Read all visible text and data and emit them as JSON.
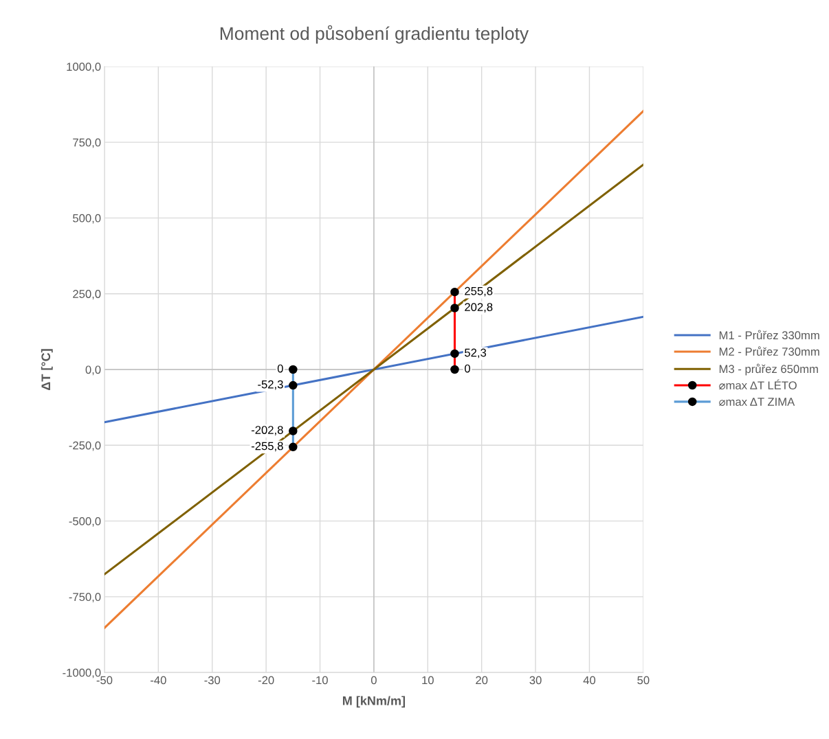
{
  "chart_data": {
    "type": "line",
    "title": "Moment od působení gradientu teploty",
    "xlabel": "M [kNm/m]",
    "ylabel": "ΔT [°C]",
    "xlim": [
      -50,
      50
    ],
    "xticks": [
      -50,
      -40,
      -30,
      -20,
      -10,
      0,
      10,
      20,
      30,
      40,
      50
    ],
    "ylim": [
      -1000,
      1000
    ],
    "yticks": [
      {
        "value": -1000,
        "label": "-1000,0"
      },
      {
        "value": -750,
        "label": "-750,0"
      },
      {
        "value": -500,
        "label": "-500,0"
      },
      {
        "value": -250,
        "label": "-250,0"
      },
      {
        "value": 0,
        "label": "0,0"
      },
      {
        "value": 250,
        "label": "250,0"
      },
      {
        "value": 500,
        "label": "500,0"
      },
      {
        "value": 750,
        "label": "750,0"
      },
      {
        "value": 1000,
        "label": "1000,0"
      }
    ],
    "grid": true,
    "legend": "right",
    "marker": "none",
    "series": [
      {
        "name": "M1 - Průřez 330mm",
        "color": "#4472c4",
        "x": [
          -50,
          50
        ],
        "values": [
          -174,
          174
        ]
      },
      {
        "name": "M2 - Průřez 730mm",
        "color": "#ed7d31",
        "x": [
          -50,
          50
        ],
        "values": [
          -853,
          853
        ]
      },
      {
        "name": "M3 - průřez 650mm",
        "color": "#7f6000",
        "x": [
          -50,
          50
        ],
        "values": [
          -676,
          676
        ]
      },
      {
        "name": "⌀max ΔT LÉTO",
        "color": "#ff0000",
        "marker": "circle",
        "x": [
          15,
          15,
          15,
          15
        ],
        "values": [
          0,
          52.3,
          202.8,
          255.8
        ],
        "value_labels": [
          "0",
          "52,3",
          "202,8",
          "255,8"
        ]
      },
      {
        "name": "⌀max ΔT ZIMA",
        "color": "#5b9bd5",
        "marker": "circle",
        "x": [
          -15,
          -15,
          -15,
          -15
        ],
        "values": [
          0,
          -52.3,
          -202.8,
          -255.8
        ],
        "value_labels": [
          "0",
          "-52,3",
          "-202,8",
          "-255,8"
        ]
      }
    ]
  }
}
